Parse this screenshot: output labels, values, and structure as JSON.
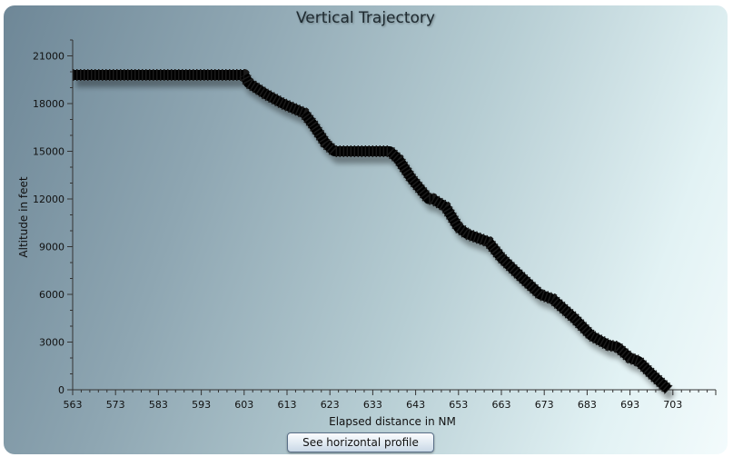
{
  "chart_data": {
    "type": "line",
    "title": "Vertical Trajectory",
    "xlabel": "Elapsed distance in NM",
    "ylabel": "Altitude in feet",
    "xlim": [
      563,
      713
    ],
    "ylim": [
      0,
      22000
    ],
    "x_ticks": [
      "563",
      "573",
      "583",
      "593",
      "603",
      "613",
      "623",
      "633",
      "643",
      "653",
      "663",
      "673",
      "683",
      "693",
      "703"
    ],
    "y_ticks": [
      "0",
      "3000",
      "6000",
      "9000",
      "12000",
      "15000",
      "18000",
      "21000"
    ],
    "series": [
      {
        "color": "#000000",
        "x": [
          563,
          603,
          604,
          608,
          612,
          617,
          619,
          622,
          624,
          633,
          637,
          639,
          642,
          646,
          647,
          650,
          653,
          655,
          660,
          663,
          668,
          672,
          675,
          680,
          684,
          688,
          690,
          693,
          695,
          698,
          700,
          702
        ],
        "y": [
          19800,
          19800,
          19300,
          18600,
          18000,
          17400,
          16700,
          15500,
          15000,
          15000,
          15000,
          14500,
          13300,
          12000,
          12000,
          11500,
          10200,
          9800,
          9300,
          8300,
          7000,
          6000,
          5700,
          4500,
          3400,
          2800,
          2700,
          2000,
          1800,
          1000,
          500,
          0
        ]
      }
    ]
  },
  "button": {
    "label": "See horizontal profile"
  },
  "colors": {
    "line": "#000000",
    "shadow": "#000000"
  }
}
